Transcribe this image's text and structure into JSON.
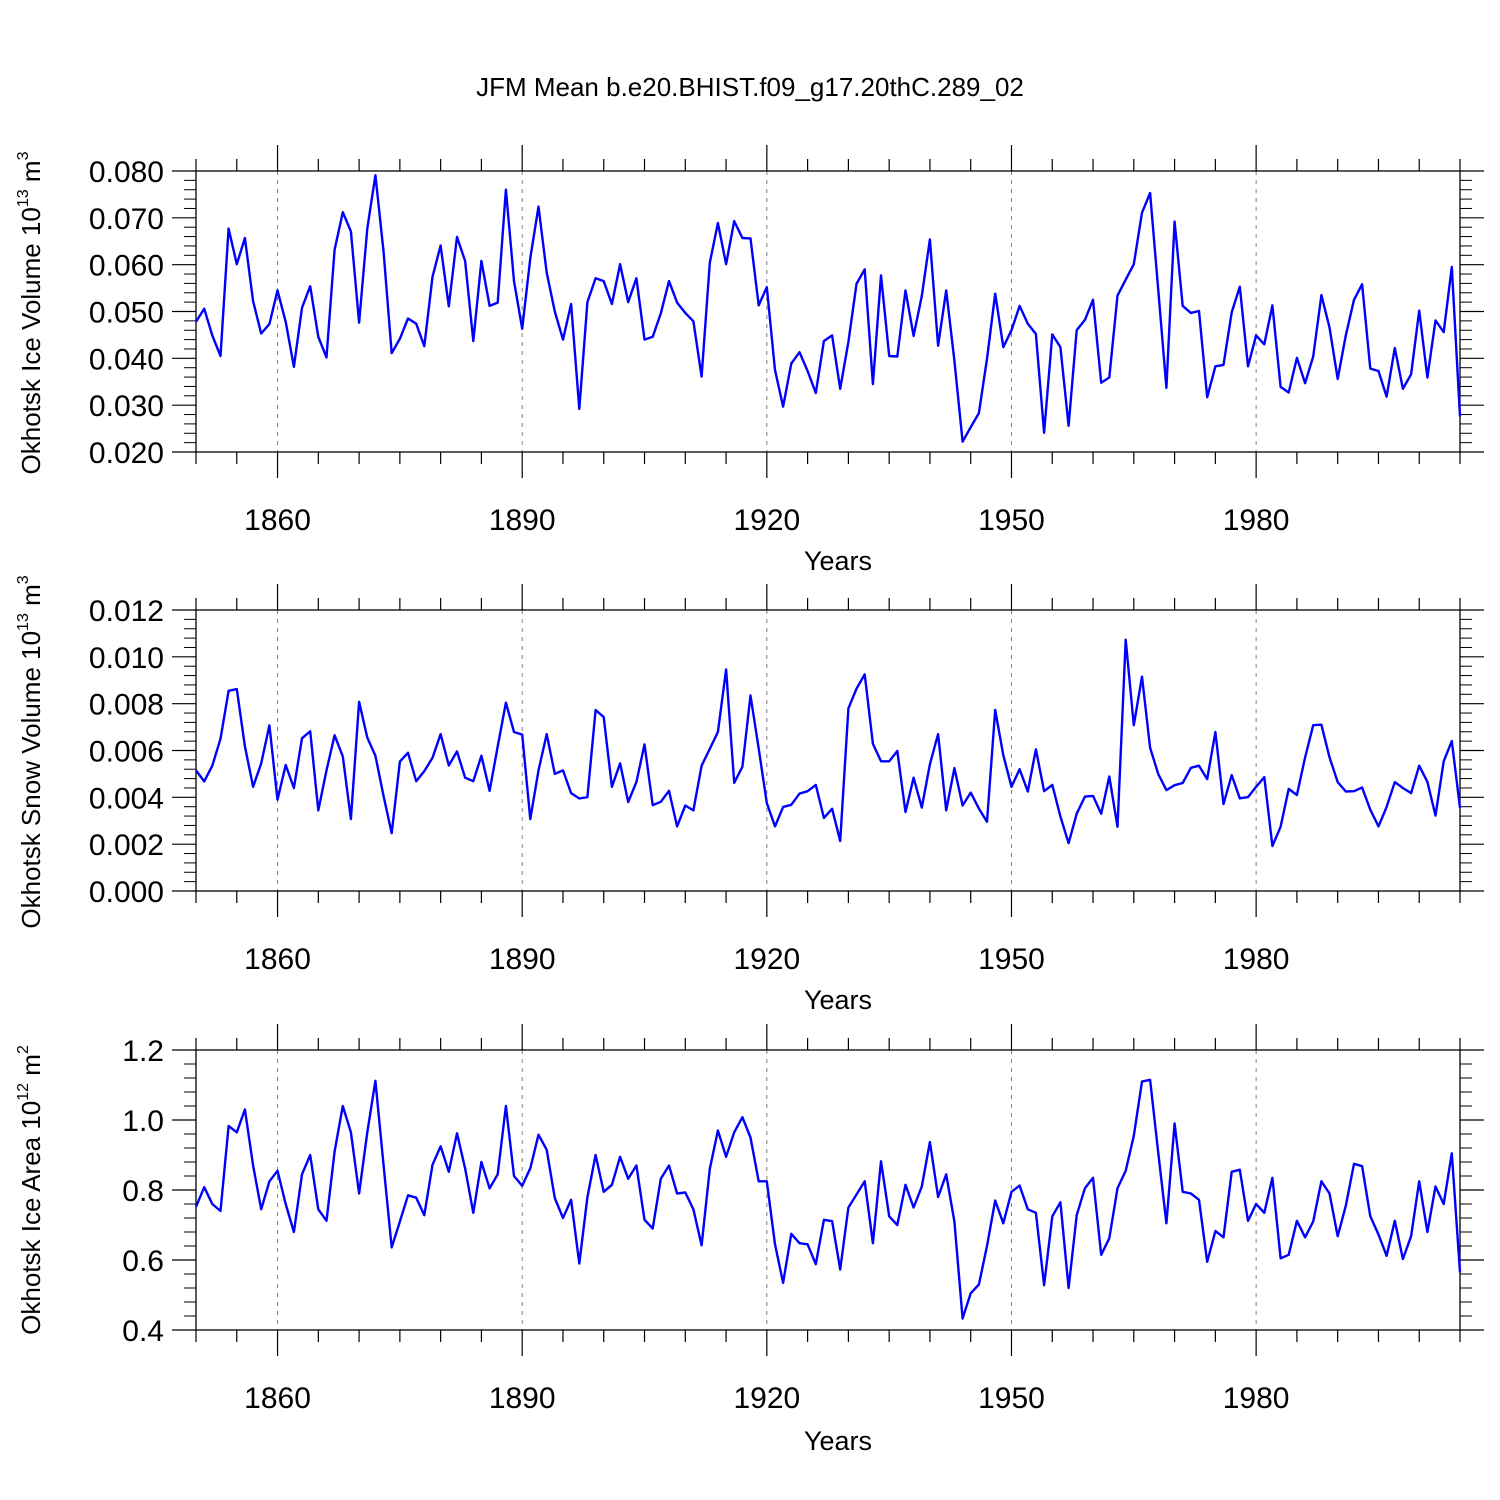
{
  "title": "JFM Mean b.e20.BHIST.f09_g17.20thC.289_02",
  "colors": {
    "series": "#0000ff",
    "axes": "#000000",
    "grid": "#808080",
    "background": "#ffffff"
  },
  "chart_data": [
    {
      "type": "line",
      "title": "JFM Mean b.e20.BHIST.f09_g17.20thC.289_02",
      "xlabel": "Years",
      "ylabel": {
        "prefix": "Okhotsk Ice Volume 10",
        "exponent": "13",
        "unit": " m",
        "unit_exponent": "3"
      },
      "xlim": [
        1850,
        2005
      ],
      "ylim": [
        0.02,
        0.08
      ],
      "xticks": [
        1860,
        1890,
        1920,
        1950,
        1980
      ],
      "xtick_labels": [
        "1860",
        "1890",
        "1920",
        "1950",
        "1980"
      ],
      "yticks": [
        0.02,
        0.03,
        0.04,
        0.05,
        0.06,
        0.07,
        0.08
      ],
      "ytick_labels": [
        "0.020",
        "0.030",
        "0.040",
        "0.050",
        "0.060",
        "0.070",
        "0.080"
      ],
      "grid": "vertical dashed at labeled x ticks",
      "series": [
        {
          "name": "Okhotsk Ice Volume",
          "x_start": 1850,
          "x_step": 1,
          "values": [
            0.0478,
            0.0506,
            0.0449,
            0.0405,
            0.0677,
            0.0601,
            0.0657,
            0.0522,
            0.0453,
            0.0473,
            0.0545,
            0.0478,
            0.0382,
            0.0508,
            0.0554,
            0.0446,
            0.0402,
            0.0632,
            0.0712,
            0.0671,
            0.0476,
            0.0677,
            0.0791,
            0.0627,
            0.0411,
            0.0442,
            0.0485,
            0.0474,
            0.0426,
            0.0574,
            0.0641,
            0.0511,
            0.0659,
            0.0608,
            0.0437,
            0.0608,
            0.0512,
            0.0519,
            0.076,
            0.0565,
            0.0463,
            0.0614,
            0.0724,
            0.0583,
            0.05,
            0.044,
            0.0516,
            0.0292,
            0.052,
            0.0571,
            0.0565,
            0.0516,
            0.0601,
            0.052,
            0.0571,
            0.044,
            0.0446,
            0.0496,
            0.0565,
            0.0519,
            0.0497,
            0.0479,
            0.0361,
            0.0604,
            0.0689,
            0.0601,
            0.0693,
            0.0657,
            0.0656,
            0.0513,
            0.0552,
            0.0375,
            0.0297,
            0.0389,
            0.0413,
            0.0373,
            0.0326,
            0.0437,
            0.0449,
            0.0335,
            0.0435,
            0.0559,
            0.059,
            0.0345,
            0.0577,
            0.0405,
            0.0404,
            0.0545,
            0.0448,
            0.0533,
            0.0654,
            0.0427,
            0.0545,
            0.0395,
            0.0222,
            0.0253,
            0.0283,
            0.0399,
            0.0538,
            0.0424,
            0.046,
            0.0512,
            0.0474,
            0.0452,
            0.0241,
            0.0451,
            0.0424,
            0.0256,
            0.046,
            0.0482,
            0.0525,
            0.0348,
            0.0359,
            0.0534,
            0.0568,
            0.0601,
            0.0711,
            0.0753,
            0.0545,
            0.0337,
            0.0692,
            0.0512,
            0.0497,
            0.0501,
            0.0317,
            0.0383,
            0.0386,
            0.0498,
            0.0553,
            0.0383,
            0.0449,
            0.043,
            0.0513,
            0.0339,
            0.0327,
            0.0401,
            0.0347,
            0.0404,
            0.0535,
            0.0466,
            0.0356,
            0.0449,
            0.0525,
            0.0558,
            0.0378,
            0.0373,
            0.0318,
            0.0422,
            0.0335,
            0.0366,
            0.0502,
            0.0359,
            0.0481,
            0.0456,
            0.0595,
            0.0276
          ]
        }
      ]
    },
    {
      "type": "line",
      "xlabel": "Years",
      "ylabel": {
        "prefix": "Okhotsk Snow Volume 10",
        "exponent": "13",
        "unit": " m",
        "unit_exponent": "3"
      },
      "xlim": [
        1850,
        2005
      ],
      "ylim": [
        0.0,
        0.012
      ],
      "xticks": [
        1860,
        1890,
        1920,
        1950,
        1980
      ],
      "xtick_labels": [
        "1860",
        "1890",
        "1920",
        "1950",
        "1980"
      ],
      "yticks": [
        0.0,
        0.002,
        0.004,
        0.006,
        0.008,
        0.01,
        0.012
      ],
      "ytick_labels": [
        "0.000",
        "0.002",
        "0.004",
        "0.006",
        "0.008",
        "0.010",
        "0.012"
      ],
      "grid": "vertical dashed at labeled x ticks",
      "series": [
        {
          "name": "Okhotsk Snow Volume",
          "x_start": 1850,
          "x_step": 1,
          "values": [
            0.00515,
            0.00468,
            0.00535,
            0.0065,
            0.00855,
            0.00862,
            0.00618,
            0.00445,
            0.00545,
            0.00707,
            0.0039,
            0.00538,
            0.0044,
            0.00652,
            0.00682,
            0.00344,
            0.00515,
            0.00665,
            0.00575,
            0.00307,
            0.00808,
            0.00655,
            0.00578,
            0.00405,
            0.00247,
            0.00553,
            0.0059,
            0.00469,
            0.00512,
            0.00569,
            0.0067,
            0.00536,
            0.00596,
            0.00484,
            0.00469,
            0.00578,
            0.00428,
            0.00617,
            0.00804,
            0.00679,
            0.00668,
            0.00307,
            0.00515,
            0.0067,
            0.005,
            0.00515,
            0.00418,
            0.00395,
            0.00401,
            0.00773,
            0.00743,
            0.00445,
            0.00545,
            0.0038,
            0.00465,
            0.00626,
            0.00367,
            0.00381,
            0.00428,
            0.00276,
            0.00365,
            0.00344,
            0.00535,
            0.00607,
            0.00679,
            0.00946,
            0.00462,
            0.00531,
            0.00835,
            0.00608,
            0.00376,
            0.00276,
            0.00359,
            0.00368,
            0.00416,
            0.00426,
            0.00453,
            0.00312,
            0.00351,
            0.00214,
            0.0078,
            0.00864,
            0.00925,
            0.00629,
            0.00554,
            0.00554,
            0.00598,
            0.00337,
            0.00484,
            0.00356,
            0.00541,
            0.0067,
            0.00344,
            0.00525,
            0.00365,
            0.0042,
            0.00352,
            0.00296,
            0.00773,
            0.0058,
            0.00445,
            0.0052,
            0.00425,
            0.00605,
            0.00426,
            0.00453,
            0.00318,
            0.00204,
            0.0033,
            0.00403,
            0.00406,
            0.0033,
            0.00489,
            0.00274,
            0.01073,
            0.00708,
            0.00915,
            0.00612,
            0.00499,
            0.00431,
            0.00452,
            0.00461,
            0.00526,
            0.00535,
            0.00478,
            0.00679,
            0.00371,
            0.00495,
            0.00396,
            0.00401,
            0.00445,
            0.00486,
            0.00192,
            0.00274,
            0.00436,
            0.0041,
            0.0057,
            0.00708,
            0.0071,
            0.00571,
            0.00465,
            0.00425,
            0.00426,
            0.00442,
            0.00347,
            0.00276,
            0.00359,
            0.00465,
            0.0044,
            0.00418,
            0.00535,
            0.00466,
            0.00322,
            0.00554,
            0.0064,
            0.00355
          ]
        }
      ]
    },
    {
      "type": "line",
      "xlabel": "Years",
      "ylabel": {
        "prefix": "Okhotsk Ice Area 10",
        "exponent": "12",
        "unit": " m",
        "unit_exponent": "2"
      },
      "xlim": [
        1850,
        2005
      ],
      "ylim": [
        0.4,
        1.2
      ],
      "xticks": [
        1860,
        1890,
        1920,
        1950,
        1980
      ],
      "xtick_labels": [
        "1860",
        "1890",
        "1920",
        "1950",
        "1980"
      ],
      "yticks": [
        0.4,
        0.6,
        0.8,
        1.0,
        1.2
      ],
      "ytick_labels": [
        "0.4",
        "0.6",
        "0.8",
        "1.0",
        "1.2"
      ],
      "grid": "vertical dashed at labeled x ticks",
      "series": [
        {
          "name": "Okhotsk Ice Area",
          "x_start": 1850,
          "x_step": 1,
          "values": [
            0.752,
            0.808,
            0.76,
            0.74,
            0.983,
            0.965,
            1.03,
            0.87,
            0.745,
            0.825,
            0.855,
            0.76,
            0.68,
            0.845,
            0.9,
            0.745,
            0.712,
            0.91,
            1.04,
            0.965,
            0.79,
            0.965,
            1.112,
            0.87,
            0.636,
            0.71,
            0.785,
            0.778,
            0.728,
            0.872,
            0.925,
            0.852,
            0.962,
            0.862,
            0.735,
            0.88,
            0.805,
            0.845,
            1.04,
            0.84,
            0.812,
            0.862,
            0.958,
            0.915,
            0.777,
            0.72,
            0.772,
            0.59,
            0.779,
            0.9,
            0.795,
            0.815,
            0.895,
            0.832,
            0.87,
            0.715,
            0.69,
            0.832,
            0.87,
            0.79,
            0.793,
            0.745,
            0.642,
            0.86,
            0.97,
            0.895,
            0.965,
            1.008,
            0.95,
            0.825,
            0.825,
            0.645,
            0.535,
            0.675,
            0.648,
            0.645,
            0.588,
            0.715,
            0.711,
            0.573,
            0.75,
            0.787,
            0.825,
            0.648,
            0.882,
            0.725,
            0.7,
            0.815,
            0.75,
            0.81,
            0.937,
            0.78,
            0.845,
            0.71,
            0.433,
            0.505,
            0.53,
            0.64,
            0.77,
            0.705,
            0.795,
            0.813,
            0.745,
            0.735,
            0.528,
            0.725,
            0.765,
            0.52,
            0.728,
            0.805,
            0.835,
            0.615,
            0.662,
            0.805,
            0.855,
            0.955,
            1.11,
            1.115,
            0.905,
            0.705,
            0.99,
            0.795,
            0.79,
            0.772,
            0.595,
            0.683,
            0.665,
            0.852,
            0.858,
            0.712,
            0.76,
            0.735,
            0.835,
            0.605,
            0.615,
            0.712,
            0.665,
            0.71,
            0.825,
            0.79,
            0.668,
            0.755,
            0.875,
            0.868,
            0.725,
            0.673,
            0.612,
            0.712,
            0.603,
            0.668,
            0.825,
            0.68,
            0.81,
            0.76,
            0.905,
            0.565
          ]
        }
      ]
    }
  ]
}
